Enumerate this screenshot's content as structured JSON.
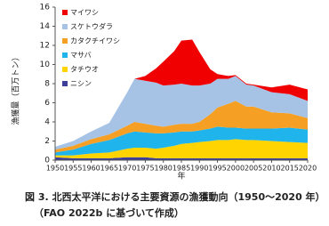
{
  "chart_data": {
    "type": "stacked_area",
    "y_label": "漁獲量（百万トン）",
    "x_label": "年",
    "caption": "図 3. 北西太平洋における主要資源の漁獲動向（1950～2020 年）",
    "source": "（FAO 2022b に基づいて作成）",
    "x": [
      1950,
      1955,
      1960,
      1965,
      1970,
      1972,
      1975,
      1978,
      1980,
      1983,
      1985,
      1988,
      1990,
      1993,
      1995,
      1998,
      2000,
      2003,
      2005,
      2010,
      2015,
      2020
    ],
    "xlim": [
      1950,
      2020
    ],
    "xticks": [
      1950,
      1955,
      1960,
      1965,
      1970,
      1975,
      1980,
      1985,
      1990,
      1995,
      2000,
      2005,
      2010,
      2015,
      2020
    ],
    "ylim": [
      0,
      16
    ],
    "yticks": [
      0,
      2,
      4,
      6,
      8,
      10,
      12,
      14,
      16
    ],
    "series": [
      {
        "name": "マイワシ",
        "color": "#f00000",
        "values": [
          0,
          0,
          0,
          0,
          0,
          0,
          0.5,
          1.5,
          2.5,
          3.5,
          4.5,
          4.8,
          3.5,
          1.5,
          0.5,
          0.3,
          0.1,
          0.1,
          0.1,
          0.5,
          1,
          1.2
        ]
      },
      {
        "name": "スケトウダラ",
        "color": "#a6c3e6",
        "values": [
          0.3,
          0.5,
          0.8,
          1.2,
          3.5,
          4.5,
          4.5,
          4.5,
          4.3,
          4.2,
          4.2,
          4,
          3.8,
          3.2,
          3,
          2.6,
          2.6,
          2.3,
          2.2,
          2.1,
          2,
          1.8
        ]
      },
      {
        "name": "カタクチイワシ",
        "color": "#f5a025",
        "values": [
          0.3,
          0.4,
          0.5,
          0.6,
          0.8,
          1,
          0.9,
          0.8,
          0.7,
          0.8,
          0.8,
          0.8,
          0.9,
          1.5,
          2,
          2.5,
          2.8,
          2.3,
          2.3,
          1.7,
          1.5,
          1.2
        ]
      },
      {
        "name": "マサバ",
        "color": "#1fb4ec",
        "values": [
          0.3,
          0.6,
          1,
          1.3,
          1.6,
          1.7,
          1.6,
          1.6,
          1.5,
          1.4,
          1.3,
          1.2,
          1.2,
          1.3,
          1.4,
          1.3,
          1.2,
          1.2,
          1.2,
          1.3,
          1.5,
          1.4
        ]
      },
      {
        "name": "タチウオ",
        "color": "#ffd400",
        "values": [
          0.2,
          0.3,
          0.5,
          0.6,
          0.9,
          1,
          1,
          1,
          1.1,
          1.3,
          1.5,
          1.6,
          1.7,
          1.8,
          1.9,
          1.9,
          2,
          1.9,
          1.9,
          1.8,
          1.7,
          1.6
        ]
      },
      {
        "name": "ニシン",
        "color": "#3d3d9a",
        "values": [
          0.3,
          0.2,
          0.2,
          0.2,
          0.3,
          0.3,
          0.3,
          0.2,
          0.2,
          0.2,
          0.2,
          0.2,
          0.2,
          0.2,
          0.2,
          0.2,
          0.2,
          0.2,
          0.2,
          0.2,
          0.2,
          0.2
        ]
      }
    ]
  }
}
